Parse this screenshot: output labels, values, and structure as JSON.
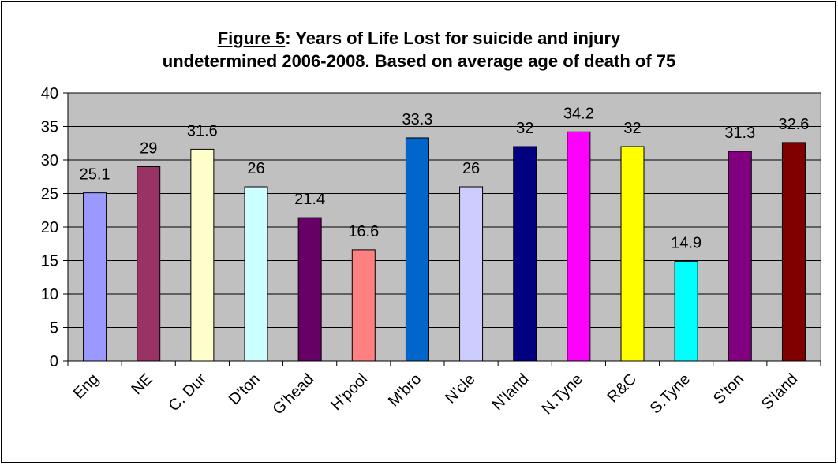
{
  "chart_data": {
    "type": "bar",
    "title_prefix": "Figure 5",
    "title_rest": ": Years of Life Lost for suicide and injury",
    "title_line2": "undetermined 2006-2008. Based on average age of death of 75",
    "categories": [
      "Eng",
      "NE",
      "C. Dur",
      "D'ton",
      "G'head",
      "H'pool",
      "M'bro",
      "N'cle",
      "N'land",
      "N.Tyne",
      "R&C",
      "S.Tyne",
      "S'ton",
      "S'land"
    ],
    "values": [
      25.1,
      29,
      31.6,
      26,
      21.4,
      16.6,
      33.3,
      26,
      32,
      34.2,
      32,
      14.9,
      31.3,
      32.6
    ],
    "value_labels": [
      "25.1",
      "29",
      "31.6",
      "26",
      "21.4",
      "16.6",
      "33.3",
      "26",
      "32",
      "34.2",
      "32",
      "14.9",
      "31.3",
      "32.6"
    ],
    "colors": [
      "#9999FF",
      "#993366",
      "#FFFFCC",
      "#CCFFFF",
      "#660066",
      "#FF8080",
      "#0066CC",
      "#CCCCFF",
      "#000080",
      "#FF00FF",
      "#FFFF00",
      "#00FFFF",
      "#800080",
      "#800000"
    ],
    "ylim": [
      0,
      40
    ],
    "yticks": [
      0,
      5,
      10,
      15,
      20,
      25,
      30,
      35,
      40
    ],
    "plot_background": "#C0C0C0",
    "grid": true,
    "legend": false
  }
}
